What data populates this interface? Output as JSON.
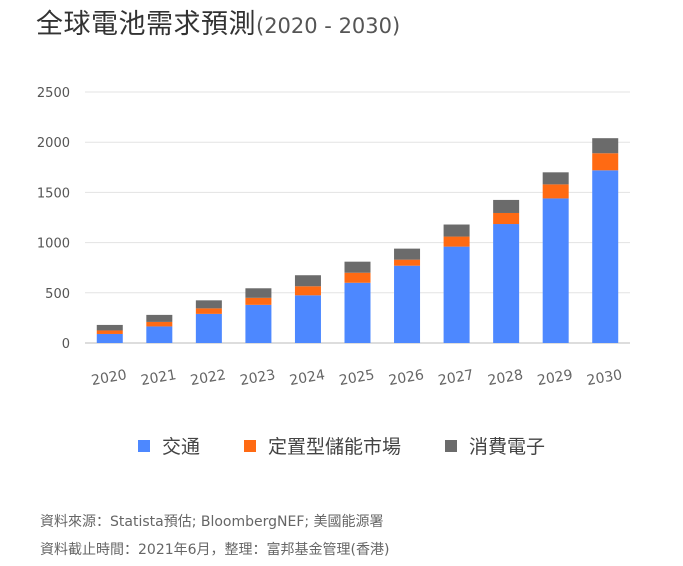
{
  "title": "全球電池需求預測",
  "subtitle": "(2020 - 2030)",
  "chart_data": {
    "type": "bar",
    "stacked": true,
    "categories": [
      "2020",
      "2021",
      "2022",
      "2023",
      "2024",
      "2025",
      "2026",
      "2027",
      "2028",
      "2029",
      "2030"
    ],
    "series": [
      {
        "name": "交通",
        "color": "#4d88ff",
        "values": [
          90,
          165,
          290,
          380,
          475,
          600,
          770,
          960,
          1185,
          1440,
          1720
        ]
      },
      {
        "name": "定置型儲能市場",
        "color": "#ff6a13",
        "values": [
          35,
          45,
          55,
          70,
          90,
          100,
          60,
          100,
          110,
          140,
          170
        ]
      },
      {
        "name": "消費電子",
        "color": "#6b6b6b",
        "values": [
          55,
          70,
          80,
          95,
          110,
          110,
          110,
          120,
          130,
          120,
          150
        ]
      }
    ],
    "yticks": [
      0,
      500,
      1000,
      1500,
      2000,
      2500
    ],
    "ylim": [
      0,
      2500
    ],
    "grid": true,
    "legend_position": "bottom"
  },
  "source": {
    "line1": "資料來源：Statista預估; BloombergNEF; 美國能源署",
    "line2": "資料截止時間：2021年6月，整理：富邦基金管理(香港)"
  }
}
